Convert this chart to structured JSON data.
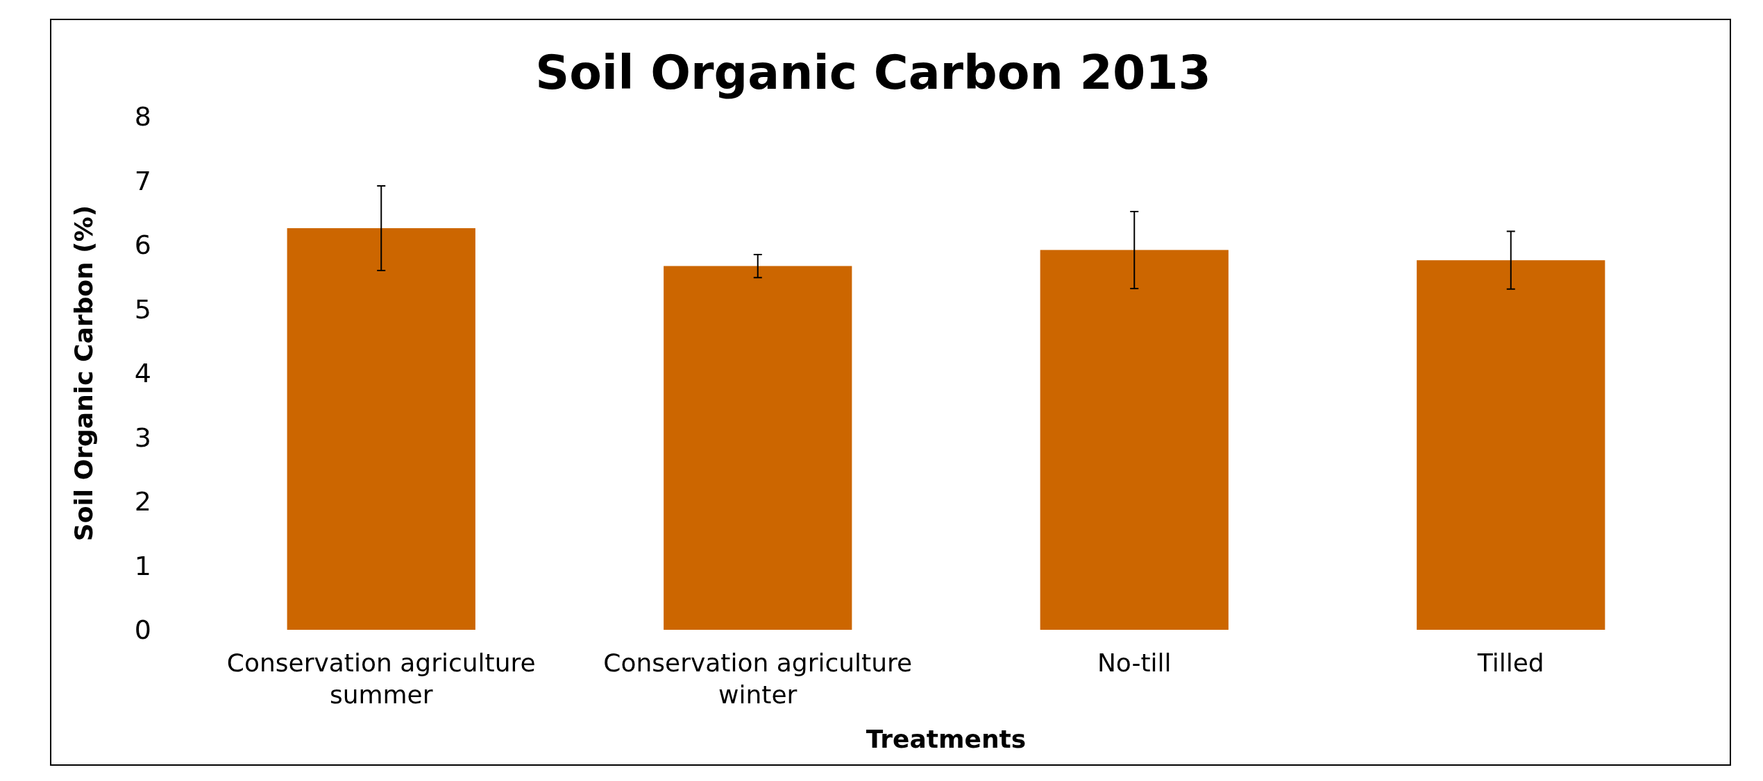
{
  "chart_data": {
    "type": "bar",
    "title": "Soil Organic Carbon 2013",
    "xlabel": "Treatments",
    "ylabel": "Soil Organic Carbon (%)",
    "categories": [
      "Conservation agriculture\nsummer",
      "Conservation agriculture\nwinter",
      "No-till",
      "Tilled"
    ],
    "values": [
      6.26,
      5.67,
      5.92,
      5.76
    ],
    "errors": [
      0.66,
      0.18,
      0.6,
      0.45
    ],
    "color": "#cc6600",
    "ylim": [
      0,
      8
    ],
    "yticks": [
      0,
      1,
      2,
      3,
      4,
      5,
      6,
      7,
      8
    ],
    "grid": false
  }
}
